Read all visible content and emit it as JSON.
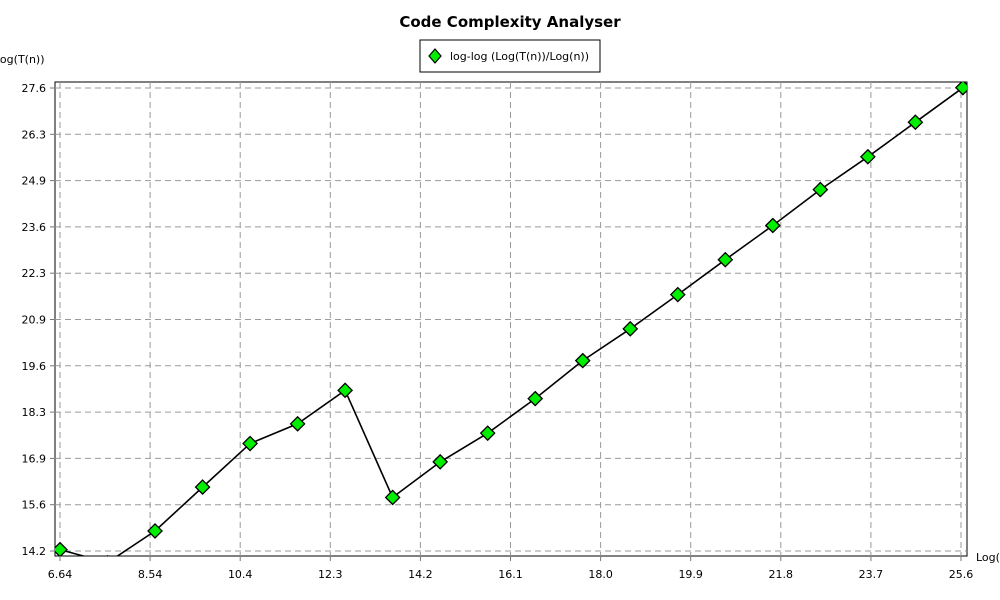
{
  "chart_data": {
    "type": "line",
    "title": "Code Complexity Analyser",
    "xlabel": "Log(n)",
    "ylabel": "Log(T(n))",
    "xlim": [
      6.64,
      25.6
    ],
    "ylim": [
      14.2,
      27.6
    ],
    "x_ticks": [
      "6.64",
      "8.54",
      "10.4",
      "12.3",
      "14.2",
      "16.1",
      "18.0",
      "19.9",
      "21.8",
      "23.7",
      "25.6"
    ],
    "y_ticks": [
      "14.2",
      "15.6",
      "16.9",
      "18.3",
      "19.6",
      "20.9",
      "22.3",
      "23.6",
      "24.9",
      "26.3",
      "27.6"
    ],
    "grid": true,
    "legend_position": "top-center",
    "series": [
      {
        "name": "log-log (Log(T(n))/Log(n))",
        "color": "#000000",
        "marker": "diamond",
        "marker_color": "#00ee00",
        "points": [
          [
            6.64,
            14.24
          ],
          [
            7.64,
            13.86
          ],
          [
            8.64,
            14.78
          ],
          [
            9.64,
            16.05
          ],
          [
            10.64,
            17.31
          ],
          [
            11.64,
            17.88
          ],
          [
            12.64,
            18.85
          ],
          [
            13.64,
            15.75
          ],
          [
            14.64,
            16.78
          ],
          [
            15.64,
            17.61
          ],
          [
            16.64,
            18.61
          ],
          [
            17.64,
            19.71
          ],
          [
            18.64,
            20.63
          ],
          [
            19.64,
            21.62
          ],
          [
            20.64,
            22.63
          ],
          [
            21.64,
            23.62
          ],
          [
            22.64,
            24.66
          ],
          [
            23.64,
            25.61
          ],
          [
            24.64,
            26.61
          ],
          [
            25.64,
            27.61
          ]
        ]
      }
    ]
  }
}
